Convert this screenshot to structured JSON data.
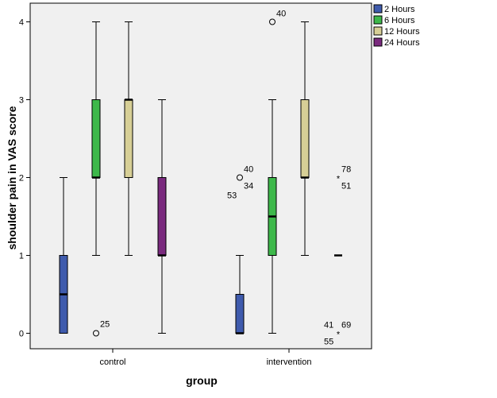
{
  "chart_data": {
    "type": "boxplot",
    "xlabel": "group",
    "ylabel": "shoulder pain in VAS score",
    "ylim": [
      -0.2,
      4.1
    ],
    "yticks": [
      0,
      1,
      2,
      3,
      4
    ],
    "ytick_labels": [
      "0",
      "1",
      "2",
      "3",
      "4"
    ],
    "categories": [
      "control",
      "intervention"
    ],
    "legend_position": "right",
    "series": [
      {
        "name": "2 Hours",
        "color": "#3f5bad",
        "boxes": [
          {
            "category": "control",
            "min": 0,
            "q1": 0,
            "median": 0.5,
            "q3": 1,
            "max": 2
          },
          {
            "category": "intervention",
            "min": 0,
            "q1": 0,
            "median": 0,
            "q3": 0.5,
            "max": 1
          }
        ]
      },
      {
        "name": "6 Hours",
        "color": "#3db84a",
        "boxes": [
          {
            "category": "control",
            "min": 1,
            "q1": 2,
            "median": 2,
            "q3": 3,
            "max": 4
          },
          {
            "category": "intervention",
            "min": 0,
            "q1": 1,
            "median": 1.5,
            "q3": 2,
            "max": 3
          }
        ]
      },
      {
        "name": "12 Hours",
        "color": "#d7cf96",
        "boxes": [
          {
            "category": "control",
            "min": 1,
            "q1": 2,
            "median": 3,
            "q3": 3,
            "max": 4
          },
          {
            "category": "intervention",
            "min": 1,
            "q1": 2,
            "median": 2,
            "q3": 3,
            "max": 4
          }
        ]
      },
      {
        "name": "24 Hours",
        "color": "#7a2a7e",
        "boxes": [
          {
            "category": "control",
            "min": 0,
            "q1": 1,
            "median": 1,
            "q3": 2,
            "max": 3
          },
          {
            "category": "intervention",
            "min": 1,
            "q1": 1,
            "median": 1,
            "q3": 1,
            "max": 1
          }
        ]
      }
    ],
    "outliers": [
      {
        "series": "6 Hours",
        "category": "control",
        "value": 0,
        "marker": "circle",
        "labels": [
          "25"
        ]
      },
      {
        "series": "2 Hours",
        "category": "intervention",
        "value": 2,
        "marker": "circle",
        "labels": [
          "40",
          "34",
          "53"
        ]
      },
      {
        "series": "6 Hours",
        "category": "intervention",
        "value": 4,
        "marker": "circle",
        "labels": [
          "40"
        ]
      },
      {
        "series": "24 Hours",
        "category": "intervention",
        "value": 2,
        "marker": "star",
        "labels": [
          "78",
          "51"
        ]
      },
      {
        "series": "24 Hours",
        "category": "intervention",
        "value": 0,
        "marker": "star",
        "labels": [
          "41",
          "69",
          "55"
        ]
      }
    ]
  }
}
